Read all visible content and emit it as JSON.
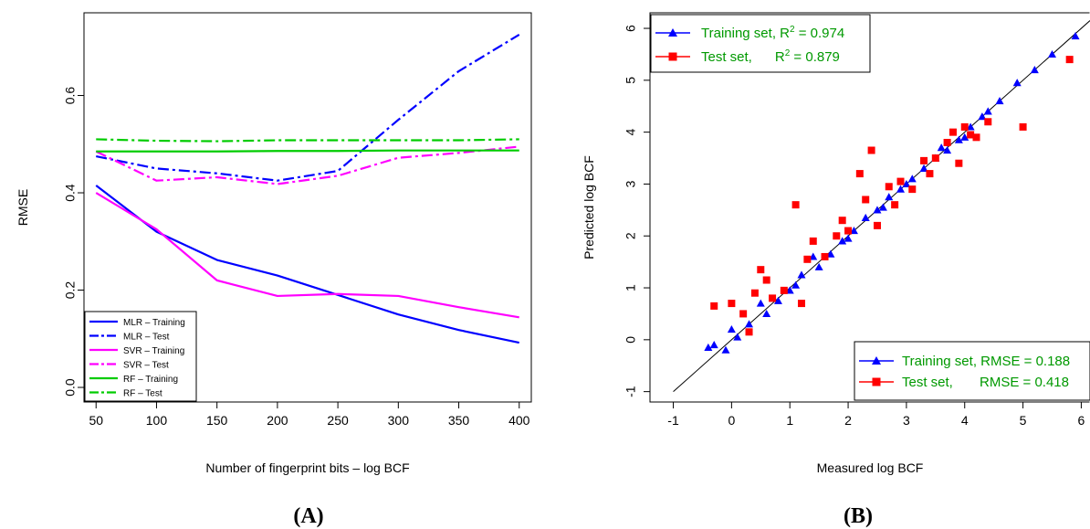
{
  "chart_data": [
    {
      "type": "line",
      "panel_label": "(A)",
      "xlabel": "Number of fingerprint bits – log BCF",
      "ylabel": "RMSE",
      "xlim": [
        40,
        410
      ],
      "ylim": [
        -0.03,
        0.77
      ],
      "x_ticks": [
        50,
        100,
        150,
        200,
        250,
        300,
        350,
        400
      ],
      "y_ticks": [
        0.0,
        0.2,
        0.4,
        0.6
      ],
      "y_tick_labels": [
        "0.0",
        "0.2",
        "0.4",
        "0.6"
      ],
      "legend_position": "bottom-left",
      "x": [
        50,
        100,
        150,
        200,
        250,
        300,
        350,
        400
      ],
      "series": [
        {
          "name": "MLR – Training",
          "color": "#0000ff",
          "dash": "solid",
          "values": [
            0.415,
            0.32,
            0.262,
            0.23,
            0.19,
            0.15,
            0.118,
            0.092
          ]
        },
        {
          "name": "MLR – Test",
          "color": "#0000ff",
          "dash": "dashdot",
          "values": [
            0.475,
            0.45,
            0.44,
            0.425,
            0.445,
            0.55,
            0.65,
            0.725
          ]
        },
        {
          "name": "SVR – Training",
          "color": "#ff00ff",
          "dash": "solid",
          "values": [
            0.4,
            0.325,
            0.22,
            0.188,
            0.192,
            0.188,
            0.165,
            0.144
          ]
        },
        {
          "name": "SVR – Test",
          "color": "#ff00ff",
          "dash": "dashdot",
          "values": [
            0.485,
            0.425,
            0.432,
            0.418,
            0.435,
            0.472,
            0.482,
            0.495
          ]
        },
        {
          "name": "RF – Training",
          "color": "#00cc00",
          "dash": "solid",
          "values": [
            0.485,
            0.485,
            0.485,
            0.486,
            0.486,
            0.487,
            0.487,
            0.487
          ]
        },
        {
          "name": "RF – Test",
          "color": "#00cc00",
          "dash": "dashdot",
          "values": [
            0.51,
            0.507,
            0.506,
            0.508,
            0.508,
            0.508,
            0.508,
            0.51
          ]
        }
      ]
    },
    {
      "type": "scatter",
      "panel_label": "(B)",
      "xlabel": "Measured log BCF",
      "ylabel": "Predicted log BCF",
      "xlim": [
        -1.4,
        6.15
      ],
      "ylim": [
        -1.2,
        6.3
      ],
      "x_ticks": [
        -1,
        0,
        1,
        2,
        3,
        4,
        5,
        6
      ],
      "y_ticks": [
        -1,
        0,
        1,
        2,
        3,
        4,
        5,
        6
      ],
      "tick_labels": [
        "-1",
        "0",
        "1",
        "2",
        "3",
        "4",
        "5",
        "6"
      ],
      "reference_line": {
        "from": [
          -1,
          -1
        ],
        "to": [
          6.15,
          6.15
        ]
      },
      "legend_top": [
        {
          "text": "Training set, R",
          "sup": "2",
          "tail": " = 0.974",
          "marker": "triangle",
          "color": "#0000ff"
        },
        {
          "text": "Test set,      R",
          "sup": "2",
          "tail": " = 0.879",
          "marker": "square",
          "color": "#ff0000"
        }
      ],
      "legend_bottom": [
        {
          "text": "Training set, RMSE = 0.188",
          "marker": "triangle",
          "color": "#0000ff"
        },
        {
          "text": "Test set,       RMSE = 0.418",
          "marker": "square",
          "color": "#ff0000"
        }
      ],
      "legend_text_color": "#009900",
      "series": [
        {
          "name": "Training set",
          "marker": "triangle",
          "color": "#0000ff",
          "x": [
            -0.4,
            -0.3,
            -0.1,
            0.1,
            0.3,
            0.6,
            0.8,
            1.0,
            1.2,
            1.5,
            1.7,
            1.9,
            2.1,
            2.3,
            2.5,
            2.7,
            2.9,
            3.1,
            3.3,
            3.5,
            3.7,
            3.9,
            4.1,
            4.3,
            4.6,
            4.9,
            5.2,
            5.5,
            5.9,
            0.0,
            0.5,
            1.1,
            1.4,
            2.0,
            2.6,
            3.0,
            3.6,
            4.0,
            4.4
          ],
          "y": [
            -0.15,
            -0.1,
            -0.2,
            0.05,
            0.3,
            0.5,
            0.75,
            0.95,
            1.25,
            1.4,
            1.65,
            1.9,
            2.1,
            2.35,
            2.5,
            2.75,
            2.9,
            3.1,
            3.3,
            3.5,
            3.65,
            3.85,
            4.1,
            4.3,
            4.6,
            4.95,
            5.2,
            5.5,
            5.85,
            0.2,
            0.7,
            1.05,
            1.6,
            1.95,
            2.55,
            3.0,
            3.7,
            3.9,
            4.4
          ]
        },
        {
          "name": "Test set",
          "marker": "square",
          "color": "#ff0000",
          "x": [
            -0.3,
            0.0,
            0.2,
            0.4,
            0.5,
            0.7,
            0.9,
            1.1,
            1.2,
            1.4,
            1.6,
            1.8,
            2.0,
            2.2,
            2.4,
            2.5,
            2.7,
            2.9,
            3.1,
            3.3,
            3.5,
            3.7,
            3.9,
            4.0,
            4.2,
            4.4,
            5.0,
            5.8,
            0.3,
            0.6,
            1.3,
            1.9,
            2.3,
            2.8,
            3.4,
            3.8,
            4.1
          ],
          "y": [
            0.65,
            0.7,
            0.5,
            0.9,
            1.35,
            0.8,
            0.95,
            2.6,
            0.7,
            1.9,
            1.6,
            2.0,
            2.1,
            3.2,
            3.65,
            2.2,
            2.95,
            3.05,
            2.9,
            3.45,
            3.5,
            3.8,
            3.4,
            4.1,
            3.9,
            4.2,
            4.1,
            5.4,
            0.15,
            1.15,
            1.55,
            2.3,
            2.7,
            2.6,
            3.2,
            4.0,
            3.95
          ]
        }
      ]
    }
  ]
}
